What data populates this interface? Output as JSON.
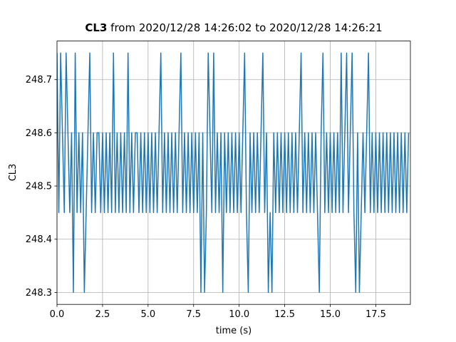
{
  "chart_data": {
    "type": "line",
    "title_name": "CL3",
    "title": "from 2020/12/28 14:26:02 to 2020/12/28 14:26:21",
    "xlabel": "time (s)",
    "ylabel": "CL3",
    "x": [
      0,
      0.1,
      0.2,
      0.3,
      0.4,
      0.5,
      0.6,
      0.7,
      0.8,
      0.9,
      1,
      1.1,
      1.2,
      1.3,
      1.4,
      1.5,
      1.6,
      1.7,
      1.8,
      1.9,
      2,
      2.1,
      2.2,
      2.3,
      2.4,
      2.5,
      2.6,
      2.7,
      2.8,
      2.9,
      3,
      3.1,
      3.2,
      3.3,
      3.4,
      3.5,
      3.6,
      3.7,
      3.8,
      3.9,
      4,
      4.1,
      4.2,
      4.3,
      4.4,
      4.5,
      4.6,
      4.7,
      4.8,
      4.9,
      5,
      5.1,
      5.2,
      5.3,
      5.4,
      5.5,
      5.6,
      5.7,
      5.8,
      5.9,
      6,
      6.1,
      6.2,
      6.3,
      6.4,
      6.5,
      6.6,
      6.7,
      6.8,
      6.9,
      7,
      7.1,
      7.2,
      7.3,
      7.4,
      7.5,
      7.6,
      7.7,
      7.8,
      7.9,
      8,
      8.1,
      8.2,
      8.3,
      8.4,
      8.5,
      8.6,
      8.7,
      8.8,
      8.9,
      9,
      9.1,
      9.2,
      9.3,
      9.4,
      9.5,
      9.6,
      9.7,
      9.8,
      9.9,
      10,
      10.1,
      10.2,
      10.3,
      10.4,
      10.5,
      10.6,
      10.7,
      10.8,
      10.9,
      11,
      11.1,
      11.2,
      11.3,
      11.4,
      11.5,
      11.6,
      11.7,
      11.8,
      11.9,
      12,
      12.1,
      12.2,
      12.3,
      12.4,
      12.5,
      12.6,
      12.7,
      12.8,
      12.9,
      13,
      13.1,
      13.2,
      13.3,
      13.4,
      13.5,
      13.6,
      13.7,
      13.8,
      13.9,
      14,
      14.1,
      14.2,
      14.3,
      14.4,
      14.5,
      14.6,
      14.7,
      14.8,
      14.9,
      15,
      15.1,
      15.2,
      15.3,
      15.4,
      15.5,
      15.6,
      15.7,
      15.8,
      15.9,
      16,
      16.1,
      16.2,
      16.3,
      16.4,
      16.5,
      16.6,
      16.7,
      16.8,
      16.9,
      17,
      17.1,
      17.2,
      17.3,
      17.4,
      17.5,
      17.6,
      17.7,
      17.8,
      17.9,
      18,
      18.1,
      18.2,
      18.3,
      18.4,
      18.5,
      18.6,
      18.7,
      18.8,
      18.9,
      19,
      19.1,
      19.2,
      19.3
    ],
    "series": [
      {
        "color": "#1f77b4",
        "values": [
          248.75,
          248.45,
          248.75,
          248.6,
          248.45,
          248.75,
          248.6,
          248.45,
          248.6,
          248.3,
          248.75,
          248.45,
          248.6,
          248.45,
          248.6,
          248.3,
          248.45,
          248.6,
          248.75,
          248.45,
          248.6,
          248.45,
          248.6,
          248.6,
          248.45,
          248.6,
          248.45,
          248.6,
          248.45,
          248.6,
          248.45,
          248.75,
          248.45,
          248.6,
          248.45,
          248.6,
          248.45,
          248.6,
          248.45,
          248.75,
          248.45,
          248.6,
          248.45,
          248.6,
          248.6,
          248.45,
          248.6,
          248.45,
          248.6,
          248.45,
          248.6,
          248.45,
          248.6,
          248.45,
          248.6,
          248.45,
          248.6,
          248.75,
          248.45,
          248.6,
          248.45,
          248.6,
          248.45,
          248.6,
          248.45,
          248.6,
          248.45,
          248.6,
          248.75,
          248.45,
          248.6,
          248.45,
          248.6,
          248.45,
          248.6,
          248.45,
          248.6,
          248.45,
          248.6,
          248.3,
          248.6,
          248.3,
          248.45,
          248.75,
          248.6,
          248.45,
          248.75,
          248.45,
          248.6,
          248.45,
          248.6,
          248.3,
          248.6,
          248.45,
          248.6,
          248.45,
          248.6,
          248.45,
          248.6,
          248.45,
          248.6,
          248.45,
          248.6,
          248.75,
          248.45,
          248.3,
          248.6,
          248.45,
          248.6,
          248.45,
          248.6,
          248.45,
          248.6,
          248.75,
          248.45,
          248.6,
          248.3,
          248.45,
          248.3,
          248.6,
          248.45,
          248.6,
          248.45,
          248.6,
          248.45,
          248.6,
          248.45,
          248.6,
          248.45,
          248.6,
          248.45,
          248.6,
          248.45,
          248.6,
          248.75,
          248.45,
          248.6,
          248.45,
          248.6,
          248.45,
          248.6,
          248.45,
          248.6,
          248.45,
          248.3,
          248.6,
          248.75,
          248.45,
          248.6,
          248.45,
          248.6,
          248.45,
          248.6,
          248.45,
          248.6,
          248.45,
          248.75,
          248.45,
          248.6,
          248.75,
          248.45,
          248.6,
          248.75,
          248.45,
          248.3,
          248.6,
          248.3,
          248.45,
          248.6,
          248.45,
          248.6,
          248.75,
          248.45,
          248.6,
          248.45,
          248.6,
          248.45,
          248.6,
          248.45,
          248.6,
          248.45,
          248.6,
          248.45,
          248.6,
          248.45,
          248.6,
          248.45,
          248.6,
          248.45,
          248.6,
          248.45,
          248.6,
          248.45,
          248.6
        ]
      }
    ],
    "xlim": [
      0,
      19.4
    ],
    "ylim": [
      248.2775,
      248.7725
    ],
    "xticks": [
      {
        "value": 0,
        "label": "0.0"
      },
      2.5,
      {
        "value": 5,
        "label": "5.0"
      },
      7.5,
      {
        "value": 10,
        "label": "10.0"
      },
      12.5,
      {
        "value": 15,
        "label": "15.0"
      },
      17.5
    ],
    "yticks": [
      248.3,
      248.4,
      248.5,
      248.6,
      248.7
    ],
    "grid": true
  }
}
